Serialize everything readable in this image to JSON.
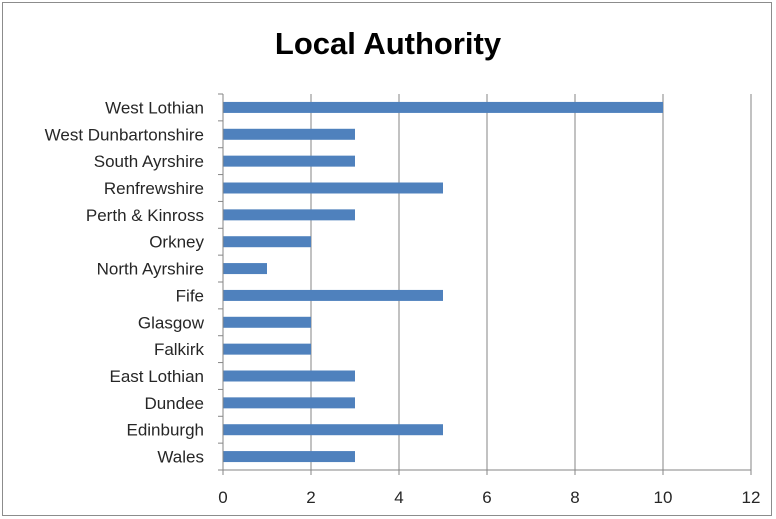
{
  "chart_data": {
    "type": "bar",
    "orientation": "horizontal",
    "title": "Local Authority",
    "xlabel": "",
    "ylabel": "",
    "categories": [
      "West Lothian",
      "West Dunbartonshire",
      "South Ayrshire",
      "Renfrewshire",
      "Perth & Kinross",
      "Orkney",
      "North Ayrshire",
      "Fife",
      "Glasgow",
      "Falkirk",
      "East Lothian",
      "Dundee",
      "Edinburgh",
      "Wales"
    ],
    "values": [
      10,
      3,
      3,
      5,
      3,
      2,
      1,
      5,
      2,
      2,
      3,
      3,
      5,
      3
    ],
    "xlim": [
      0,
      12
    ],
    "xticks": [
      0,
      2,
      4,
      6,
      8,
      10,
      12
    ],
    "grid": true,
    "legend": "none",
    "bar_color": "#4f81bd",
    "grid_color": "#868686"
  }
}
